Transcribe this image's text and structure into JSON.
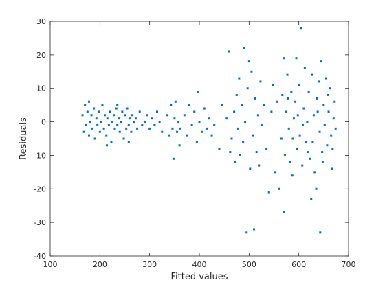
{
  "chart_data": {
    "type": "scatter",
    "xlabel": "Fitted values",
    "ylabel": "Residuals",
    "color": "#0072bd",
    "xlim": [
      100,
      700
    ],
    "xticks": [
      100,
      200,
      300,
      400,
      500,
      600,
      700
    ],
    "ylim": [
      -40,
      30
    ],
    "yticks": [
      -40,
      -30,
      -20,
      -10,
      0,
      10,
      20,
      30
    ],
    "x": [
      165,
      168,
      170,
      172,
      175,
      178,
      180,
      183,
      185,
      188,
      190,
      193,
      195,
      198,
      200,
      203,
      205,
      208,
      210,
      213,
      215,
      218,
      220,
      223,
      225,
      228,
      230,
      233,
      235,
      238,
      240,
      243,
      245,
      248,
      250,
      253,
      255,
      258,
      260,
      263,
      265,
      268,
      178,
      214,
      258,
      235,
      272,
      275,
      280,
      285,
      290,
      295,
      300,
      305,
      310,
      315,
      320,
      325,
      335,
      340,
      343,
      346,
      348,
      350,
      352,
      355,
      358,
      360,
      362,
      370,
      375,
      380,
      385,
      390,
      395,
      398,
      400,
      405,
      410,
      415,
      420,
      425,
      430,
      440,
      445,
      455,
      460,
      462,
      465,
      470,
      472,
      475,
      478,
      480,
      482,
      485,
      488,
      490,
      492,
      495,
      497,
      500,
      502,
      505,
      508,
      510,
      512,
      515,
      518,
      520,
      523,
      525,
      530,
      535,
      540,
      545,
      548,
      552,
      556,
      560,
      565,
      567,
      570,
      570,
      572,
      575,
      577,
      580,
      582,
      585,
      587,
      590,
      592,
      595,
      597,
      600,
      602,
      605,
      607,
      610,
      612,
      615,
      617,
      620,
      622,
      625,
      627,
      630,
      632,
      635,
      637,
      640,
      642,
      643,
      645,
      647,
      650,
      652,
      655,
      657,
      660,
      662,
      665,
      667,
      670,
      672,
      674,
      578,
      588,
      598,
      608,
      618,
      628,
      638,
      648,
      658,
      668
    ],
    "values": [
      2,
      -3,
      5,
      -1,
      3,
      -4,
      0,
      2,
      -2,
      4,
      -5,
      1,
      -1,
      3,
      -3,
      0,
      5,
      -2,
      2,
      -4,
      1,
      -1,
      3,
      -6,
      0,
      2,
      -2,
      4,
      -1,
      1,
      -3,
      0,
      3,
      -5,
      2,
      -2,
      4,
      -1,
      1,
      -3,
      2,
      0,
      6,
      -7,
      -6,
      5,
      1,
      -2,
      3,
      -1,
      0,
      2,
      -2,
      1,
      -1,
      3,
      0,
      -3,
      2,
      -4,
      5,
      -2,
      -11,
      1,
      6,
      -3,
      0,
      -7,
      -2,
      2,
      -4,
      5,
      -1,
      3,
      -6,
      9,
      0,
      -3,
      4,
      -2,
      1,
      -4,
      -1,
      -8,
      5,
      1,
      21,
      -9,
      -5,
      3,
      -12,
      8,
      -2,
      13,
      -10,
      5,
      -6,
      22,
      0,
      -33,
      10,
      18,
      -14,
      15,
      -4,
      -32,
      7,
      -9,
      2,
      -13,
      12,
      -1,
      5,
      -8,
      -21,
      3,
      11,
      -15,
      6,
      -20,
      -5,
      8,
      19,
      -27,
      -10,
      3,
      14,
      -2,
      -12,
      9,
      -16,
      1,
      6,
      19,
      -8,
      11,
      -4,
      28,
      -13,
      4,
      16,
      -6,
      0,
      9,
      -11,
      -23,
      14,
      2,
      -15,
      -20,
      7,
      12,
      -3,
      -33,
      18,
      -9,
      5,
      -1,
      13,
      -7,
      3,
      10,
      -4,
      -14,
      1,
      6,
      -2,
      7,
      -5,
      2,
      -1,
      -9,
      -6,
      3,
      -12,
      8,
      -8
    ]
  }
}
